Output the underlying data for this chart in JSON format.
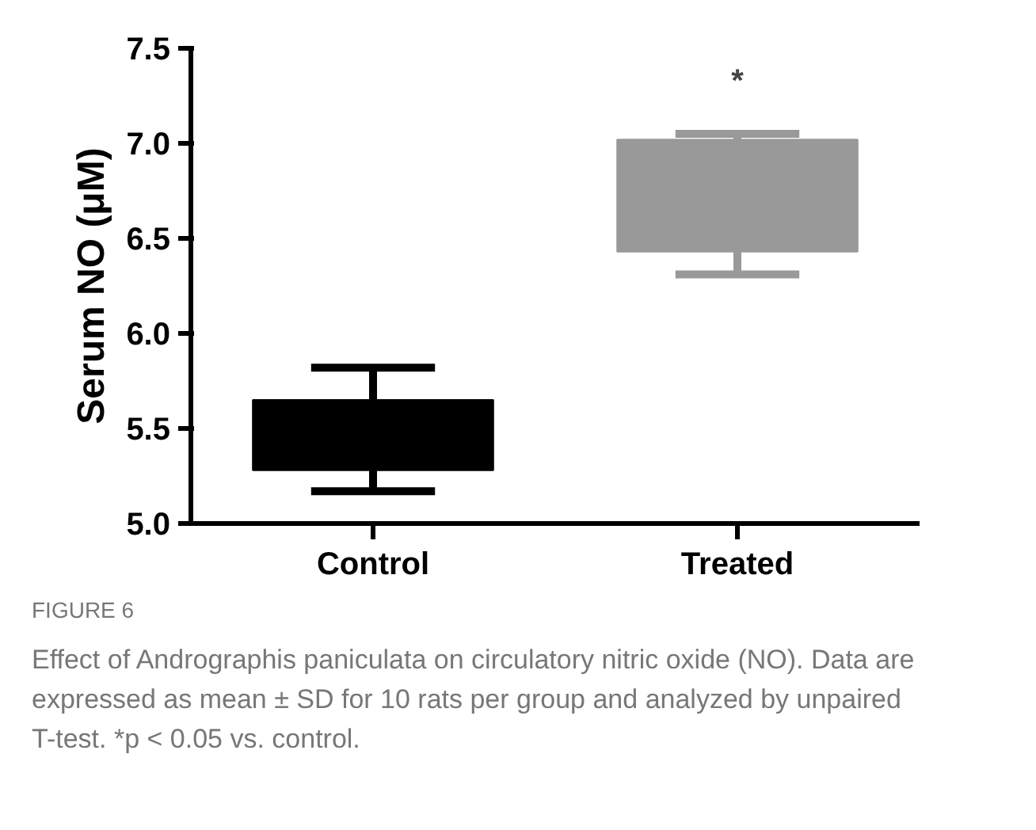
{
  "chart_data": {
    "type": "box",
    "ylabel": "Serum NO (μM)",
    "categories": [
      "Control",
      "Treated"
    ],
    "boxes": [
      {
        "low": 5.17,
        "q1": 5.28,
        "median": 5.46,
        "q3": 5.65,
        "high": 5.82
      },
      {
        "low": 6.31,
        "q1": 6.43,
        "median": 6.72,
        "q3": 7.02,
        "high": 7.05
      }
    ],
    "colors": [
      "#000000",
      "#999999"
    ],
    "ylim": [
      5.0,
      7.5
    ],
    "yticks": [
      {
        "value": 5.0,
        "label": "5.0"
      },
      5.5,
      {
        "value": 6.0,
        "label": "6.0"
      },
      6.5,
      {
        "value": 7.0,
        "label": "7.0"
      },
      7.5
    ],
    "grid": false,
    "annotations": [
      "*",
      "FIGURE 6",
      "Effect of Andrographis paniculata on circulatory nitric oxide (NO). Data are expressed as mean ± SD for 10 rats per group and analyzed by unpaired T-test. *p < 0.05 vs. control."
    ]
  }
}
